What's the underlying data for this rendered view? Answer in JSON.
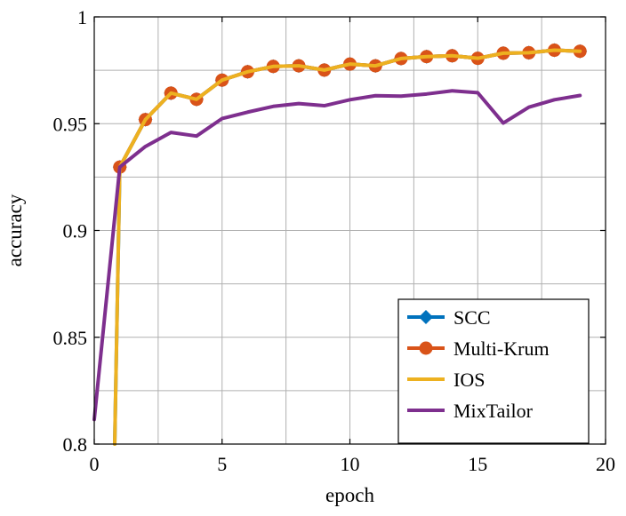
{
  "chart_data": {
    "type": "line",
    "xlabel": "epoch",
    "ylabel": "accuracy",
    "xlim": [
      0,
      20
    ],
    "ylim": [
      0.8,
      1
    ],
    "xticks": [
      "0",
      "5",
      "10",
      "15",
      "20"
    ],
    "yticks": [
      "0.8",
      "0.85",
      "0.9",
      "0.95",
      "1"
    ],
    "grid": true,
    "legend_position": "bottom-right",
    "series": [
      {
        "name": "SCC",
        "color": "#0072BD",
        "marker": "diamond",
        "x": [
          0.8,
          1,
          2,
          3,
          4,
          5,
          6,
          7,
          8,
          9,
          10,
          11,
          12,
          13,
          14,
          15,
          16,
          17,
          18,
          19
        ],
        "values": [
          0.8,
          0.9297,
          0.9519,
          0.9643,
          0.9614,
          0.9704,
          0.9743,
          0.9768,
          0.9771,
          0.9751,
          0.9779,
          0.9771,
          0.9805,
          0.9814,
          0.9818,
          0.9806,
          0.983,
          0.9832,
          0.9844,
          0.9839
        ]
      },
      {
        "name": "Multi-Krum",
        "color": "#D95319",
        "marker": "circle",
        "x": [
          1,
          2,
          3,
          4,
          5,
          6,
          7,
          8,
          9,
          10,
          11,
          12,
          13,
          14,
          15,
          16,
          17,
          18,
          19
        ],
        "values": [
          0.9297,
          0.9519,
          0.9643,
          0.9614,
          0.9704,
          0.9743,
          0.9768,
          0.9771,
          0.9751,
          0.9779,
          0.9771,
          0.9805,
          0.9814,
          0.9818,
          0.9806,
          0.983,
          0.9832,
          0.9844,
          0.9839
        ]
      },
      {
        "name": "IOS",
        "color": "#EDB120",
        "marker": "none",
        "x": [
          0.8,
          1,
          2,
          3,
          4,
          5,
          6,
          7,
          8,
          9,
          10,
          11,
          12,
          13,
          14,
          15,
          16,
          17,
          18,
          19
        ],
        "values": [
          0.8,
          0.9297,
          0.9519,
          0.9643,
          0.9614,
          0.9704,
          0.9743,
          0.9768,
          0.9771,
          0.9751,
          0.9779,
          0.9771,
          0.9805,
          0.9814,
          0.9818,
          0.9806,
          0.983,
          0.9832,
          0.9844,
          0.9839
        ]
      },
      {
        "name": "MixTailor",
        "color": "#7E2F8E",
        "marker": "none",
        "x": [
          0,
          1,
          2,
          3,
          4,
          5,
          6,
          7,
          8,
          9,
          10,
          11,
          12,
          13,
          14,
          15,
          16,
          17,
          18,
          19
        ],
        "values": [
          0.8115,
          0.9297,
          0.9393,
          0.9459,
          0.9442,
          0.9524,
          0.9554,
          0.9581,
          0.9594,
          0.9584,
          0.9612,
          0.9631,
          0.9629,
          0.9639,
          0.9654,
          0.9645,
          0.9503,
          0.9577,
          0.9612,
          0.9632
        ]
      }
    ]
  }
}
